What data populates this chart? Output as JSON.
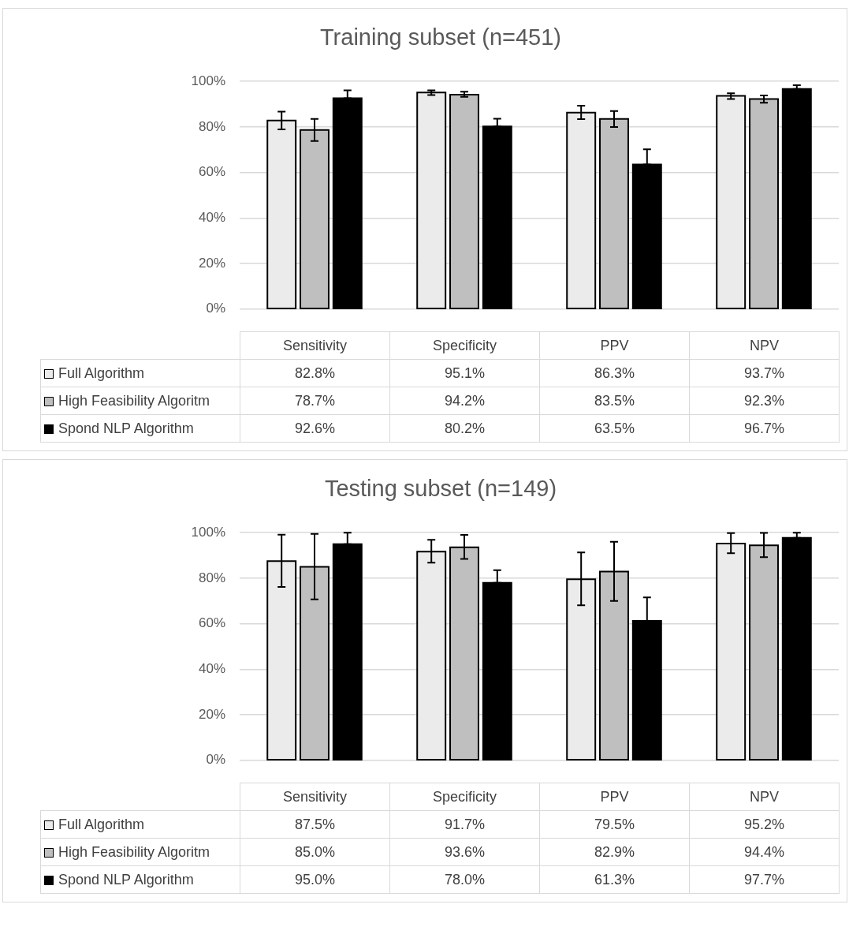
{
  "chart_data": [
    {
      "type": "bar",
      "title": "Training subset (n=451)",
      "categories": [
        "Sensitivity",
        "Specificity",
        "PPV",
        "NPV"
      ],
      "ylim": [
        0,
        100
      ],
      "yticks": [
        {
          "value": 0,
          "label": "0%"
        },
        {
          "value": 20,
          "label": "20%"
        },
        {
          "value": 40,
          "label": "40%"
        },
        {
          "value": 60,
          "label": "60%"
        },
        {
          "value": 80,
          "label": "80%"
        },
        {
          "value": 100,
          "label": "100%"
        }
      ],
      "grid": "y",
      "legend": "bottom",
      "series": [
        {
          "name": "Full Algorithm",
          "color": "#ebebeb",
          "values": [
            82.8,
            95.1,
            86.3,
            93.7
          ],
          "errors": [
            [
              78.9,
              86.7
            ],
            [
              94.0,
              96.1
            ],
            [
              83.4,
              89.3
            ],
            [
              92.3,
              94.8
            ]
          ],
          "value_labels": [
            "82.8%",
            "95.1%",
            "86.3%",
            "93.7%"
          ]
        },
        {
          "name": "High Feasibility Algoritm",
          "color": "#bfbfbf",
          "values": [
            78.7,
            94.2,
            83.5,
            92.3
          ],
          "errors": [
            [
              73.8,
              83.5
            ],
            [
              93.2,
              95.5
            ],
            [
              80.0,
              87.0
            ],
            [
              90.6,
              93.8
            ]
          ],
          "value_labels": [
            "78.7%",
            "94.2%",
            "83.5%",
            "92.3%"
          ]
        },
        {
          "name": "Spond NLP Algorithm",
          "color": "#000000",
          "values": [
            92.6,
            80.2,
            63.5,
            96.7
          ],
          "errors": [
            [
              92.6,
              96.1
            ],
            [
              80.2,
              83.6
            ],
            [
              63.5,
              70.2
            ],
            [
              96.7,
              98.3
            ]
          ],
          "value_labels": [
            "92.6%",
            "80.2%",
            "63.5%",
            "96.7%"
          ]
        }
      ]
    },
    {
      "type": "bar",
      "title": "Testing subset (n=149)",
      "categories": [
        "Sensitivity",
        "Specificity",
        "PPV",
        "NPV"
      ],
      "ylim": [
        0,
        100
      ],
      "yticks": [
        {
          "value": 0,
          "label": "0%"
        },
        {
          "value": 20,
          "label": "20%"
        },
        {
          "value": 40,
          "label": "40%"
        },
        {
          "value": 60,
          "label": "60%"
        },
        {
          "value": 80,
          "label": "80%"
        },
        {
          "value": 100,
          "label": "100%"
        }
      ],
      "grid": "y",
      "legend": "bottom",
      "series": [
        {
          "name": "Full Algorithm",
          "color": "#ebebeb",
          "values": [
            87.5,
            91.7,
            79.5,
            95.2
          ],
          "errors": [
            [
              76.2,
              99.1
            ],
            [
              86.8,
              96.9
            ],
            [
              68.1,
              91.3
            ],
            [
              91.0,
              99.8
            ]
          ],
          "value_labels": [
            "87.5%",
            "91.7%",
            "79.5%",
            "95.2%"
          ]
        },
        {
          "name": "High Feasibility Algoritm",
          "color": "#bfbfbf",
          "values": [
            85.0,
            93.6,
            82.9,
            94.4
          ],
          "errors": [
            [
              70.7,
              99.5
            ],
            [
              88.5,
              99.0
            ],
            [
              70.0,
              96.0
            ],
            [
              89.2,
              99.9
            ]
          ],
          "value_labels": [
            "85.0%",
            "93.6%",
            "82.9%",
            "94.4%"
          ]
        },
        {
          "name": "Spond NLP Algorithm",
          "color": "#000000",
          "values": [
            95.0,
            78.0,
            61.3,
            97.7
          ],
          "errors": [
            [
              95.0,
              100
            ],
            [
              78.0,
              83.5
            ],
            [
              61.3,
              71.6
            ],
            [
              97.7,
              100
            ]
          ],
          "value_labels": [
            "95.0%",
            "78.0%",
            "61.3%",
            "97.7%"
          ]
        }
      ]
    }
  ]
}
